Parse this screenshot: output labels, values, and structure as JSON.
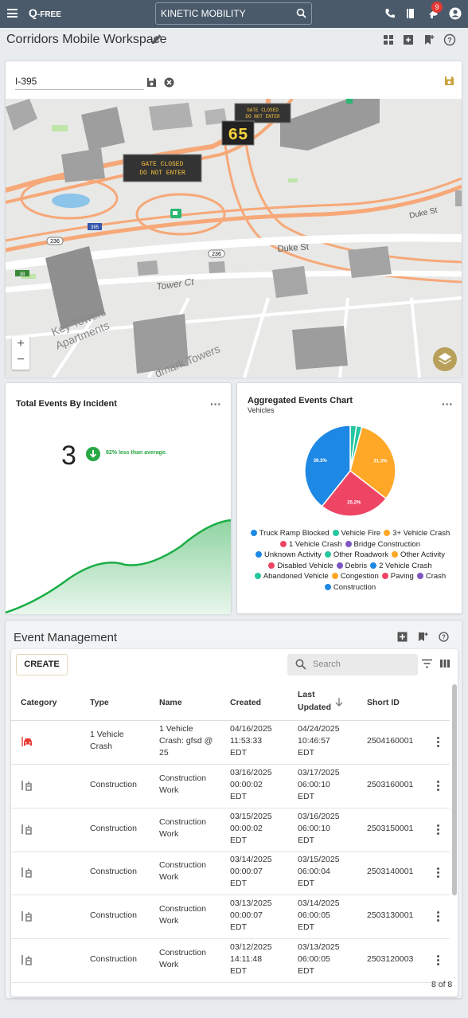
{
  "header": {
    "logo_main": "Q",
    "logo_sub": "-FREE",
    "search_value": "KINETIC MOBILITY",
    "notification_count": "9"
  },
  "workspace": {
    "title": "Corridors Mobile Workspace"
  },
  "map": {
    "corridor_name": "I-395",
    "labels": {
      "sign1": [
        "GATE CLOSED",
        "DO NOT ENTER"
      ],
      "sign2": [
        "GATE CLOSED",
        "DO NOT ENTER"
      ],
      "speed": "65",
      "duke_st": "Duke St",
      "duke_st_2": "Duke St",
      "tower_ct": "Tower Ct",
      "key_towers": "Key Towers",
      "apartments": "Apartments",
      "landmark": "dmark Towers",
      "shield_236a": "236",
      "shield_236b": "236",
      "shield_395": "395",
      "shield_38": "38"
    },
    "zoom_in": "+",
    "zoom_out": "−"
  },
  "total_events": {
    "title": "Total Events By Incident",
    "count": "3",
    "delta_text": "82% less than average."
  },
  "aggregated": {
    "title": "Aggregated Events Chart",
    "subtitle": "Vehicles",
    "slice_labels": [
      "31.3%",
      "25.2%",
      "39.3%"
    ],
    "legend": [
      {
        "name": "Truck Ramp Blocked",
        "color": "#1e88e5"
      },
      {
        "name": "Vehicle Fire",
        "color": "#26c6a0"
      },
      {
        "name": "3+ Vehicle Crash",
        "color": "#ffa726"
      },
      {
        "name": "1 Vehicle Crash",
        "color": "#ef4565"
      },
      {
        "name": "Bridge Construction",
        "color": "#7e57c2"
      },
      {
        "name": "Unknown Activity",
        "color": "#1e88e5"
      },
      {
        "name": "Other Roadwork",
        "color": "#26c6a0"
      },
      {
        "name": "Other Activity",
        "color": "#ffa726"
      },
      {
        "name": "Disabled Vehicle",
        "color": "#ef4565"
      },
      {
        "name": "Debris",
        "color": "#7e57c2"
      },
      {
        "name": "2 Vehicle Crash",
        "color": "#1e88e5"
      },
      {
        "name": "Abandoned Vehicle",
        "color": "#26c6a0"
      },
      {
        "name": "Congestion",
        "color": "#ffa726"
      },
      {
        "name": "Paving",
        "color": "#ef4565"
      },
      {
        "name": "Crash",
        "color": "#7e57c2"
      },
      {
        "name": "Construction",
        "color": "#1e88e5"
      }
    ]
  },
  "chart_data": {
    "type": "pie",
    "title": "Aggregated Events Chart",
    "subtitle": "Vehicles",
    "slices": [
      {
        "label": "3+ Vehicle Crash",
        "value": 31.3,
        "color": "#ffa726"
      },
      {
        "label": "1 Vehicle Crash",
        "value": 25.2,
        "color": "#ef4565"
      },
      {
        "label": "Truck Ramp Blocked",
        "value": 39.3,
        "color": "#1e88e5"
      },
      {
        "label": "Vehicle Fire",
        "value": 2.2,
        "color": "#26c6a0"
      },
      {
        "label": "Other Roadwork",
        "value": 2.0,
        "color": "#26c6a0"
      }
    ],
    "legend_placement": "bottom"
  },
  "event_management": {
    "title": "Event Management",
    "create_label": "CREATE",
    "search_placeholder": "Search",
    "columns": [
      "Category",
      "Type",
      "Name",
      "Created",
      "Last Updated",
      "Short ID"
    ],
    "rows": [
      {
        "category": "crash",
        "type": "1 Vehicle Crash",
        "name": "1 Vehicle Crash: gfsd @ 25",
        "created": "04/16/2025 11:53:33 EDT",
        "updated": "04/24/2025 10:46:57 EDT",
        "id": "2504160001"
      },
      {
        "category": "construction",
        "type": "Construction",
        "name": "Construction Work",
        "created": "03/16/2025 00:00:02 EDT",
        "updated": "03/17/2025 06:00:10 EDT",
        "id": "2503160001"
      },
      {
        "category": "construction",
        "type": "Construction",
        "name": "Construction Work",
        "created": "03/15/2025 00:00:02 EDT",
        "updated": "03/16/2025 06:00:10 EDT",
        "id": "2503150001"
      },
      {
        "category": "construction",
        "type": "Construction",
        "name": "Construction Work",
        "created": "03/14/2025 00:00:07 EDT",
        "updated": "03/15/2025 06:00:04 EDT",
        "id": "2503140001"
      },
      {
        "category": "construction",
        "type": "Construction",
        "name": "Construction Work",
        "created": "03/13/2025 00:00:07 EDT",
        "updated": "03/14/2025 06:00:05 EDT",
        "id": "2503130001"
      },
      {
        "category": "construction",
        "type": "Construction",
        "name": "Construction Work",
        "created": "03/12/2025 14:11:48 EDT",
        "updated": "03/13/2025 06:00:05 EDT",
        "id": "2503120003"
      }
    ],
    "pager": "8 of 8"
  }
}
